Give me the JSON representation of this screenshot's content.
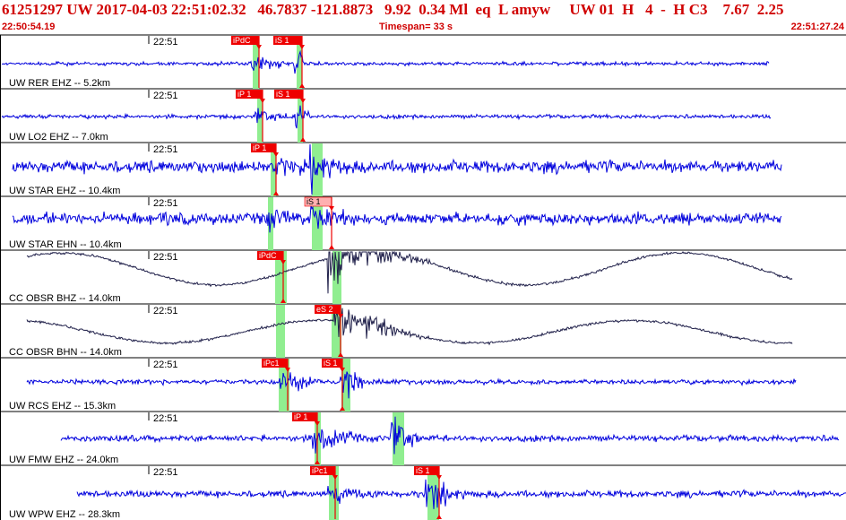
{
  "header": {
    "title": "61251297 UW 2017-04-03 22:51:02.32   46.7837 -121.8873   9.92  0.34 Ml  eq  L amyw     UW 01  H   4  -  H C3    7.67  2.25",
    "start_time": "22:50:54.19",
    "timespan": "Timespan=  33 s",
    "end_time": "22:51:27.24"
  },
  "colors": {
    "header_text": "#d00000",
    "trace_bb": "#0000dd",
    "trace_lp": "#20204a",
    "pick_red": "#ee0000",
    "pick_light": "#ffb0b0",
    "window_green": "#90ee90",
    "frame": "#000000"
  },
  "traces": [
    {
      "label": "UW RER EHZ -- 5.2km",
      "time": "22:51",
      "color": "blue",
      "picks": [
        {
          "label": "iPdC",
          "style": "red"
        },
        {
          "label": "iS 1",
          "style": "red"
        }
      ]
    },
    {
      "label": "UW LO2 EHZ -- 7.0km",
      "time": "22:51",
      "color": "blue",
      "picks": [
        {
          "label": "iP 1",
          "style": "red"
        },
        {
          "label": "iS 1",
          "style": "red"
        }
      ]
    },
    {
      "label": "UW STAR EHZ -- 10.4km",
      "time": "22:51",
      "color": "blue",
      "picks": [
        {
          "label": "iP 1",
          "style": "red"
        }
      ]
    },
    {
      "label": "UW STAR EHN -- 10.4km",
      "time": "22:51",
      "color": "blue",
      "picks": [
        {
          "label": "iS 1",
          "style": "light"
        }
      ]
    },
    {
      "label": "CC OBSR BHZ -- 14.0km",
      "time": "22:51",
      "color": "dark",
      "picks": [
        {
          "label": "iPdC",
          "style": "red"
        }
      ]
    },
    {
      "label": "CC OBSR BHN -- 14.0km",
      "time": "22:51",
      "color": "dark",
      "picks": [
        {
          "label": "eS 2",
          "style": "red"
        }
      ]
    },
    {
      "label": "UW RCS EHZ -- 15.3km",
      "time": "22:51",
      "color": "blue",
      "picks": [
        {
          "label": "iPc1",
          "style": "red"
        },
        {
          "label": "iS 1",
          "style": "red"
        }
      ]
    },
    {
      "label": "UW FMW EHZ -- 24.0km",
      "time": "22:51",
      "color": "blue",
      "picks": [
        {
          "label": "iP 1",
          "style": "red"
        }
      ]
    },
    {
      "label": "UW WPW EHZ -- 28.3km",
      "time": "22:51",
      "color": "blue",
      "picks": [
        {
          "label": "iPc1",
          "style": "red"
        },
        {
          "label": "iS 1",
          "style": "red"
        }
      ]
    }
  ]
}
